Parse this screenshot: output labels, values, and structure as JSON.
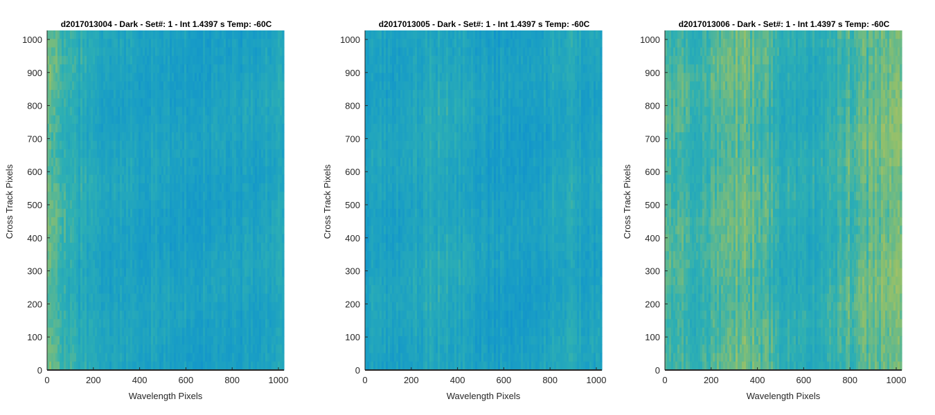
{
  "chart_data": [
    {
      "type": "heatmap",
      "title": "d2017013004 - Dark - Set#: 1 - Int 1.4397 s Temp: -60C",
      "xlabel": "Wavelength Pixels",
      "ylabel": "Cross Track Pixels",
      "xlim": [
        0,
        1024
      ],
      "ylim": [
        0,
        1024
      ],
      "xticks": [
        0,
        200,
        400,
        600,
        800,
        1000
      ],
      "yticks": [
        0,
        100,
        200,
        300,
        400,
        500,
        600,
        700,
        800,
        900,
        1000
      ],
      "colormap": [
        "#0d8ecf",
        "#1a9fc4",
        "#2fb0b2",
        "#8cbf6e",
        "#c9c25a"
      ],
      "grid": false,
      "profile": [
        0.62,
        0.48,
        0.4,
        0.36,
        0.33,
        0.32,
        0.3,
        0.3,
        0.29,
        0.28,
        0.27,
        0.27,
        0.28,
        0.3,
        0.32,
        0.36
      ]
    },
    {
      "type": "heatmap",
      "title": "d2017013005 - Dark - Set#: 1 - Int 1.4397 s Temp: -60C",
      "xlabel": "Wavelength Pixels",
      "ylabel": "Cross Track Pixels",
      "xlim": [
        0,
        1024
      ],
      "ylim": [
        0,
        1024
      ],
      "xticks": [
        0,
        200,
        400,
        600,
        800,
        1000
      ],
      "yticks": [
        0,
        100,
        200,
        300,
        400,
        500,
        600,
        700,
        800,
        900,
        1000
      ],
      "colormap": [
        "#0d8ecf",
        "#1a9fc4",
        "#2fb0b2",
        "#8cbf6e",
        "#c9c25a"
      ],
      "grid": false,
      "profile": [
        0.3,
        0.28,
        0.3,
        0.34,
        0.38,
        0.4,
        0.36,
        0.3,
        0.24,
        0.22,
        0.24,
        0.28,
        0.34,
        0.36,
        0.3,
        0.28
      ]
    },
    {
      "type": "heatmap",
      "title": "d2017013006 - Dark - Set#: 1 - Int 1.4397 s Temp: -60C",
      "xlabel": "Wavelength Pixels",
      "ylabel": "Cross Track Pixels",
      "xlim": [
        0,
        1024
      ],
      "ylim": [
        0,
        1024
      ],
      "xticks": [
        0,
        200,
        400,
        600,
        800,
        1000
      ],
      "yticks": [
        0,
        100,
        200,
        300,
        400,
        500,
        600,
        700,
        800,
        900,
        1000
      ],
      "colormap": [
        "#0d8ecf",
        "#1a9fc4",
        "#2fb0b2",
        "#8cbf6e",
        "#c9c25a"
      ],
      "grid": false,
      "profile": [
        0.62,
        0.55,
        0.5,
        0.55,
        0.62,
        0.66,
        0.6,
        0.48,
        0.4,
        0.38,
        0.44,
        0.52,
        0.58,
        0.64,
        0.7,
        0.66
      ]
    }
  ]
}
